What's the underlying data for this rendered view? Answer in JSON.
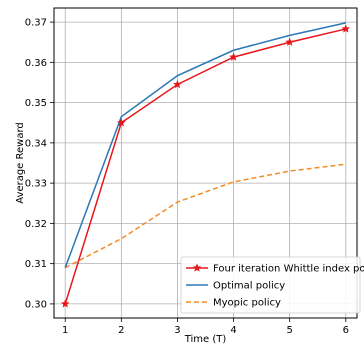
{
  "chart_data": {
    "type": "line",
    "xlabel": "Time (T)",
    "ylabel": "Average Reward",
    "x": [
      1,
      2,
      3,
      4,
      5,
      6
    ],
    "xticks": [
      "1",
      "2",
      "3",
      "4",
      "5",
      "6"
    ],
    "xlim": [
      0.8,
      6.2
    ],
    "ylim": [
      0.2965,
      0.3735
    ],
    "yticks": [
      "0.30",
      "0.31",
      "0.32",
      "0.33",
      "0.34",
      "0.35",
      "0.36",
      "0.37"
    ],
    "grid": true,
    "legend_position": "lower-right",
    "series": [
      {
        "name": "Four iteration Whittle index policy",
        "values": [
          0.3,
          0.345,
          0.3545,
          0.3613,
          0.365,
          0.3683
        ],
        "color": "#e8161b",
        "line_style": "solid",
        "marker": "star"
      },
      {
        "name": "Optimal policy",
        "values": [
          0.309,
          0.3465,
          0.3567,
          0.363,
          0.3667,
          0.3698
        ],
        "color": "#2a78b5",
        "line_style": "solid",
        "marker": "none"
      },
      {
        "name": "Myopic policy",
        "values": [
          0.309,
          0.3162,
          0.3253,
          0.3303,
          0.333,
          0.3347
        ],
        "color": "#f28c28",
        "line_style": "dashed",
        "marker": "none"
      }
    ]
  }
}
